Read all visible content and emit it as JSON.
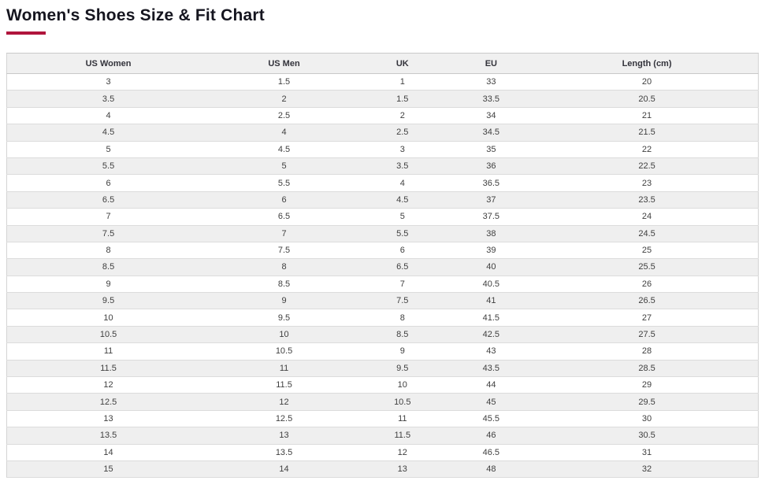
{
  "page": {
    "title": "Women's Shoes Size & Fit Chart"
  },
  "accent_color": "#b0153c",
  "size_chart": {
    "columns": [
      "US Women",
      "US Men",
      "UK",
      "EU",
      "Length (cm)"
    ],
    "rows": [
      [
        "3",
        "1.5",
        "1",
        "33",
        "20"
      ],
      [
        "3.5",
        "2",
        "1.5",
        "33.5",
        "20.5"
      ],
      [
        "4",
        "2.5",
        "2",
        "34",
        "21"
      ],
      [
        "4.5",
        "4",
        "2.5",
        "34.5",
        "21.5"
      ],
      [
        "5",
        "4.5",
        "3",
        "35",
        "22"
      ],
      [
        "5.5",
        "5",
        "3.5",
        "36",
        "22.5"
      ],
      [
        "6",
        "5.5",
        "4",
        "36.5",
        "23"
      ],
      [
        "6.5",
        "6",
        "4.5",
        "37",
        "23.5"
      ],
      [
        "7",
        "6.5",
        "5",
        "37.5",
        "24"
      ],
      [
        "7.5",
        "7",
        "5.5",
        "38",
        "24.5"
      ],
      [
        "8",
        "7.5",
        "6",
        "39",
        "25"
      ],
      [
        "8.5",
        "8",
        "6.5",
        "40",
        "25.5"
      ],
      [
        "9",
        "8.5",
        "7",
        "40.5",
        "26"
      ],
      [
        "9.5",
        "9",
        "7.5",
        "41",
        "26.5"
      ],
      [
        "10",
        "9.5",
        "8",
        "41.5",
        "27"
      ],
      [
        "10.5",
        "10",
        "8.5",
        "42.5",
        "27.5"
      ],
      [
        "11",
        "10.5",
        "9",
        "43",
        "28"
      ],
      [
        "11.5",
        "11",
        "9.5",
        "43.5",
        "28.5"
      ],
      [
        "12",
        "11.5",
        "10",
        "44",
        "29"
      ],
      [
        "12.5",
        "12",
        "10.5",
        "45",
        "29.5"
      ],
      [
        "13",
        "12.5",
        "11",
        "45.5",
        "30"
      ],
      [
        "13.5",
        "13",
        "11.5",
        "46",
        "30.5"
      ],
      [
        "14",
        "13.5",
        "12",
        "46.5",
        "31"
      ],
      [
        "15",
        "14",
        "13",
        "48",
        "32"
      ]
    ]
  }
}
